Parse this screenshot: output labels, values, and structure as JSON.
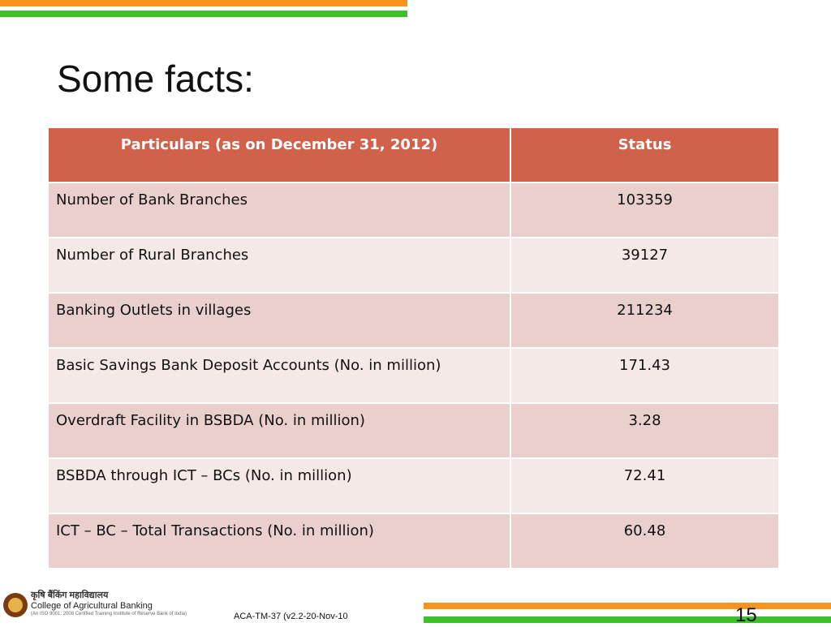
{
  "slide": {
    "title": "Some facts:",
    "page_number": "15",
    "footer_code": "ACA-TM-37 (v2.2-20-Nov-10",
    "accent_orange": "#f7941d",
    "accent_green": "#3fbf2c"
  },
  "table": {
    "header_color": "#d0614b",
    "row_color_dark": "#ead0cc",
    "row_color_light": "#f5e9e7",
    "headers": [
      "Particulars (as on December 31, 2012)",
      "Status"
    ],
    "rows": [
      [
        "Number of Bank Branches",
        "103359"
      ],
      [
        "Number of Rural Branches",
        "39127"
      ],
      [
        "Banking Outlets in villages",
        "211234"
      ],
      [
        "Basic Savings Bank Deposit Accounts (No. in million)",
        "171.43"
      ],
      [
        "Overdraft Facility in BSBDA (No. in million)",
        "3.28"
      ],
      [
        "BSBDA through ICT – BCs (No. in million)",
        "72.41"
      ],
      [
        "ICT – BC – Total Transactions (No. in million)",
        "60.48"
      ]
    ]
  },
  "logo": {
    "hindi_name": "कृषि बैंकिंग महाविद्यालय",
    "name": "College of Agricultural Banking",
    "subtitle": "(An ISO 9001: 2008 Certified Training Institute of Reserve Bank of India)"
  }
}
